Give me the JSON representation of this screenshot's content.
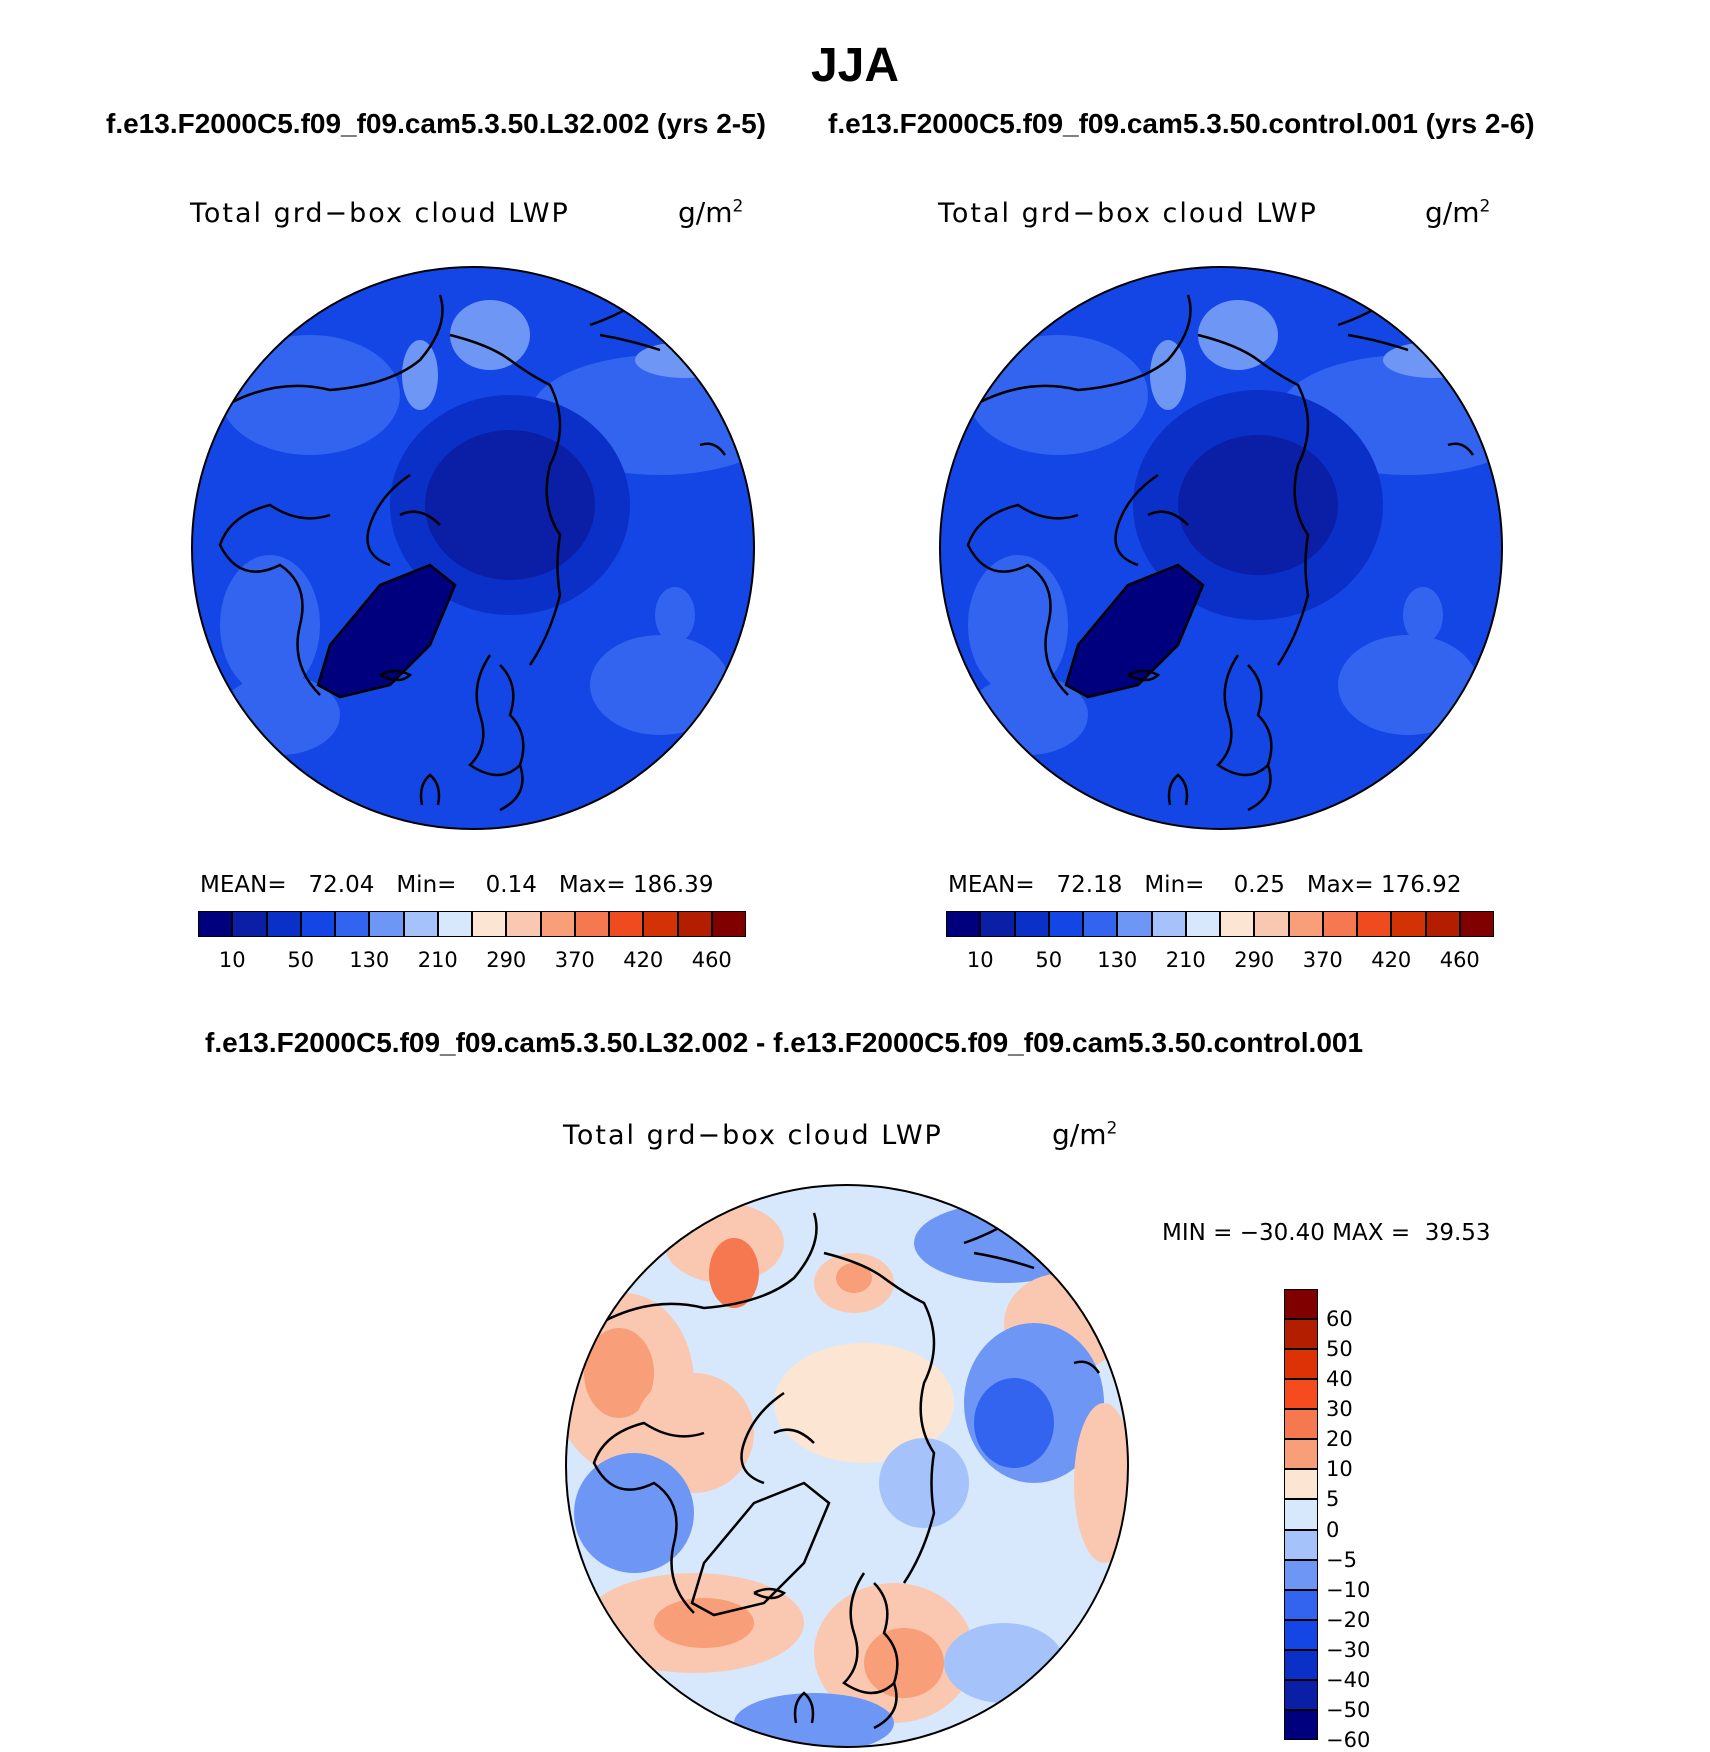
{
  "figure": {
    "title": "JJA",
    "left_case_title": "f.e13.F2000C5.f09_f09.cam5.3.50.L32.002 (yrs 2-5)",
    "right_case_title": "f.e13.F2000C5.f09_f09.cam5.3.50.control.001 (yrs 2-6)",
    "diff_title": "f.e13.F2000C5.f09_f09.cam5.3.50.L32.002 - f.e13.F2000C5.f09_f09.cam5.3.50.control.001"
  },
  "panels": [
    {
      "label": "Total grd−box cloud LWP",
      "units": "g/m",
      "units_exp": "2",
      "stats": {
        "mean_label": "MEAN=",
        "mean": "72.04",
        "min_label": "Min=",
        "min": "0.14",
        "max_label": "Max=",
        "max": "186.39"
      }
    },
    {
      "label": "Total grd−box cloud LWP",
      "units": "g/m",
      "units_exp": "2",
      "stats": {
        "mean_label": "MEAN=",
        "mean": "72.18",
        "min_label": "Min=",
        "min": "0.25",
        "max_label": "Max=",
        "max": "176.92"
      }
    },
    {
      "label": "Total grd−box cloud LWP",
      "units": "g/m",
      "units_exp": "2",
      "stats": {
        "min_label": "MIN =",
        "min": "−30.40",
        "max_label": "MAX =",
        "max": "39.53"
      }
    }
  ],
  "colorbar_main": {
    "colors": [
      "#00007f",
      "#0a1ea6",
      "#0a30c8",
      "#1446e6",
      "#3264f0",
      "#6e96f5",
      "#a5c3fa",
      "#d7e8fc",
      "#fce5d2",
      "#fac8b0",
      "#f89e78",
      "#f67850",
      "#f04b1e",
      "#d23205",
      "#b41e00",
      "#800000"
    ],
    "labels": [
      "10",
      "50",
      "130",
      "210",
      "290",
      "370",
      "420",
      "460"
    ]
  },
  "colorbar_diff": {
    "colors": [
      "#800000",
      "#b41e00",
      "#dc3205",
      "#f54b1e",
      "#f67850",
      "#f89e78",
      "#fce5d2",
      "#d7e8fc",
      "#a5c3fa",
      "#6e96f5",
      "#3264f0",
      "#1446e6",
      "#0a30c8",
      "#0a1ea6",
      "#00007f"
    ],
    "labels": [
      "60",
      "50",
      "40",
      "30",
      "20",
      "10",
      "5",
      "0",
      "−5",
      "−10",
      "−20",
      "−30",
      "−40",
      "−50",
      "−60"
    ]
  }
}
